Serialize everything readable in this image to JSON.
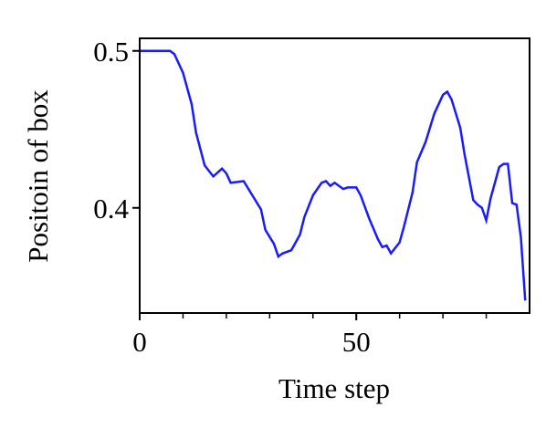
{
  "chart_data": {
    "type": "line",
    "xlabel": "Time step",
    "ylabel": "Positoin of box",
    "x": [
      0,
      7,
      8,
      10,
      12,
      13,
      15,
      17,
      19,
      20,
      21,
      24,
      26,
      28,
      29,
      31,
      32,
      33,
      35,
      37,
      38,
      40,
      42,
      43,
      44,
      45,
      47,
      48,
      50,
      51,
      53,
      55,
      56,
      57,
      58,
      60,
      61,
      63,
      64,
      66,
      68,
      70,
      71,
      72,
      73,
      74,
      75,
      77,
      78,
      79,
      80,
      81,
      82,
      83,
      84,
      85,
      86,
      87,
      88,
      89
    ],
    "series": [
      {
        "color": "#1a1aff",
        "values": [
          0.5,
          0.5,
          0.498,
          0.486,
          0.466,
          0.448,
          0.427,
          0.42,
          0.425,
          0.422,
          0.416,
          0.417,
          0.408,
          0.399,
          0.386,
          0.377,
          0.369,
          0.371,
          0.373,
          0.383,
          0.394,
          0.408,
          0.416,
          0.417,
          0.414,
          0.416,
          0.412,
          0.413,
          0.413,
          0.408,
          0.393,
          0.38,
          0.375,
          0.376,
          0.371,
          0.378,
          0.388,
          0.41,
          0.429,
          0.442,
          0.46,
          0.472,
          0.474,
          0.469,
          0.46,
          0.451,
          0.434,
          0.405,
          0.402,
          0.4,
          0.392,
          0.406,
          0.416,
          0.426,
          0.428,
          0.428,
          0.403,
          0.402,
          0.381,
          0.341
        ]
      }
    ],
    "xlim": [
      0,
      90
    ],
    "xticks": [
      0,
      50
    ],
    "xminorticks": [
      10,
      20,
      30,
      40,
      60,
      70,
      80
    ],
    "ylim": [
      0.333,
      0.508
    ],
    "yticks": [
      0.4,
      0.5
    ]
  }
}
